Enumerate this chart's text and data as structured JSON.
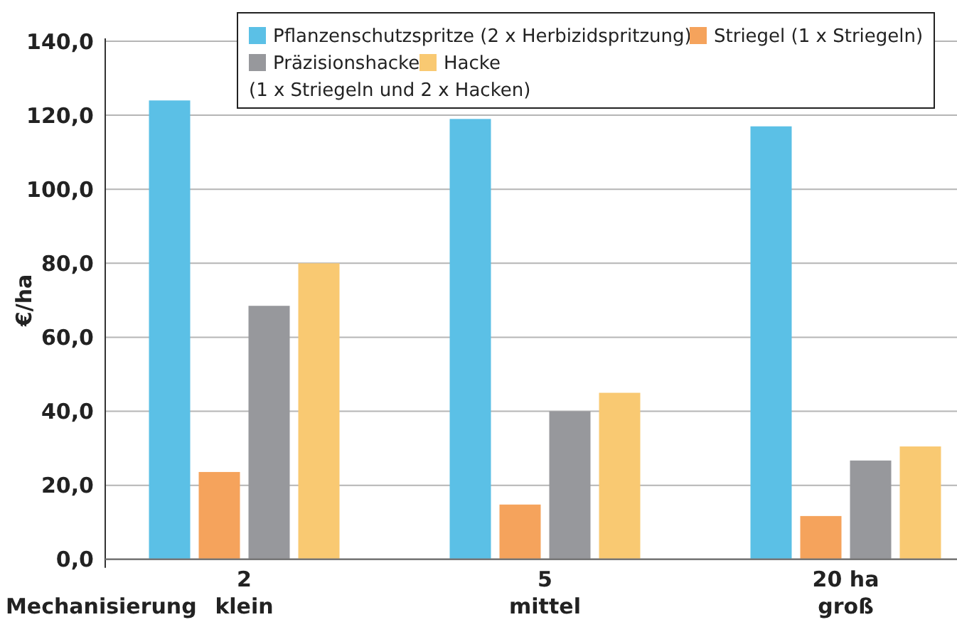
{
  "chart_data": {
    "type": "bar",
    "ylabel": "€/ha",
    "xlabel": "Mechanisierung",
    "categories": [
      "2\nklein",
      "5\nmittel",
      "20 ha\ngroß"
    ],
    "series": [
      {
        "name": "Pflanzenschutzspritze (2 x Herbizidspritzung)",
        "color": "#5bc0e6",
        "values": [
          124,
          119,
          117
        ]
      },
      {
        "name": "Striegel (1 x Striegeln)",
        "color": "#f5a35c",
        "values": [
          23.6,
          14.8,
          11.7
        ]
      },
      {
        "name": "Präzisionshacke",
        "color": "#97989c",
        "values": [
          68.5,
          40,
          26.7
        ]
      },
      {
        "name": "Hacke",
        "color": "#f9c972",
        "values": [
          80,
          45,
          30.5
        ]
      }
    ],
    "annotations": [
      "(1 x Striegeln und 2 x Hacken)"
    ],
    "ylim": [
      0,
      140
    ],
    "yticks": [
      {
        "value": 0,
        "label": "0,0"
      },
      {
        "value": 20,
        "label": "20,0"
      },
      {
        "value": 40,
        "label": "40,0"
      },
      {
        "value": 60,
        "label": "60,0"
      },
      {
        "value": 80,
        "label": "80,0"
      },
      {
        "value": 100,
        "label": "100,0"
      },
      {
        "value": 120,
        "label": "120,0"
      },
      {
        "value": 140,
        "label": "140,0"
      }
    ],
    "grid": "y",
    "legend": "top right"
  }
}
